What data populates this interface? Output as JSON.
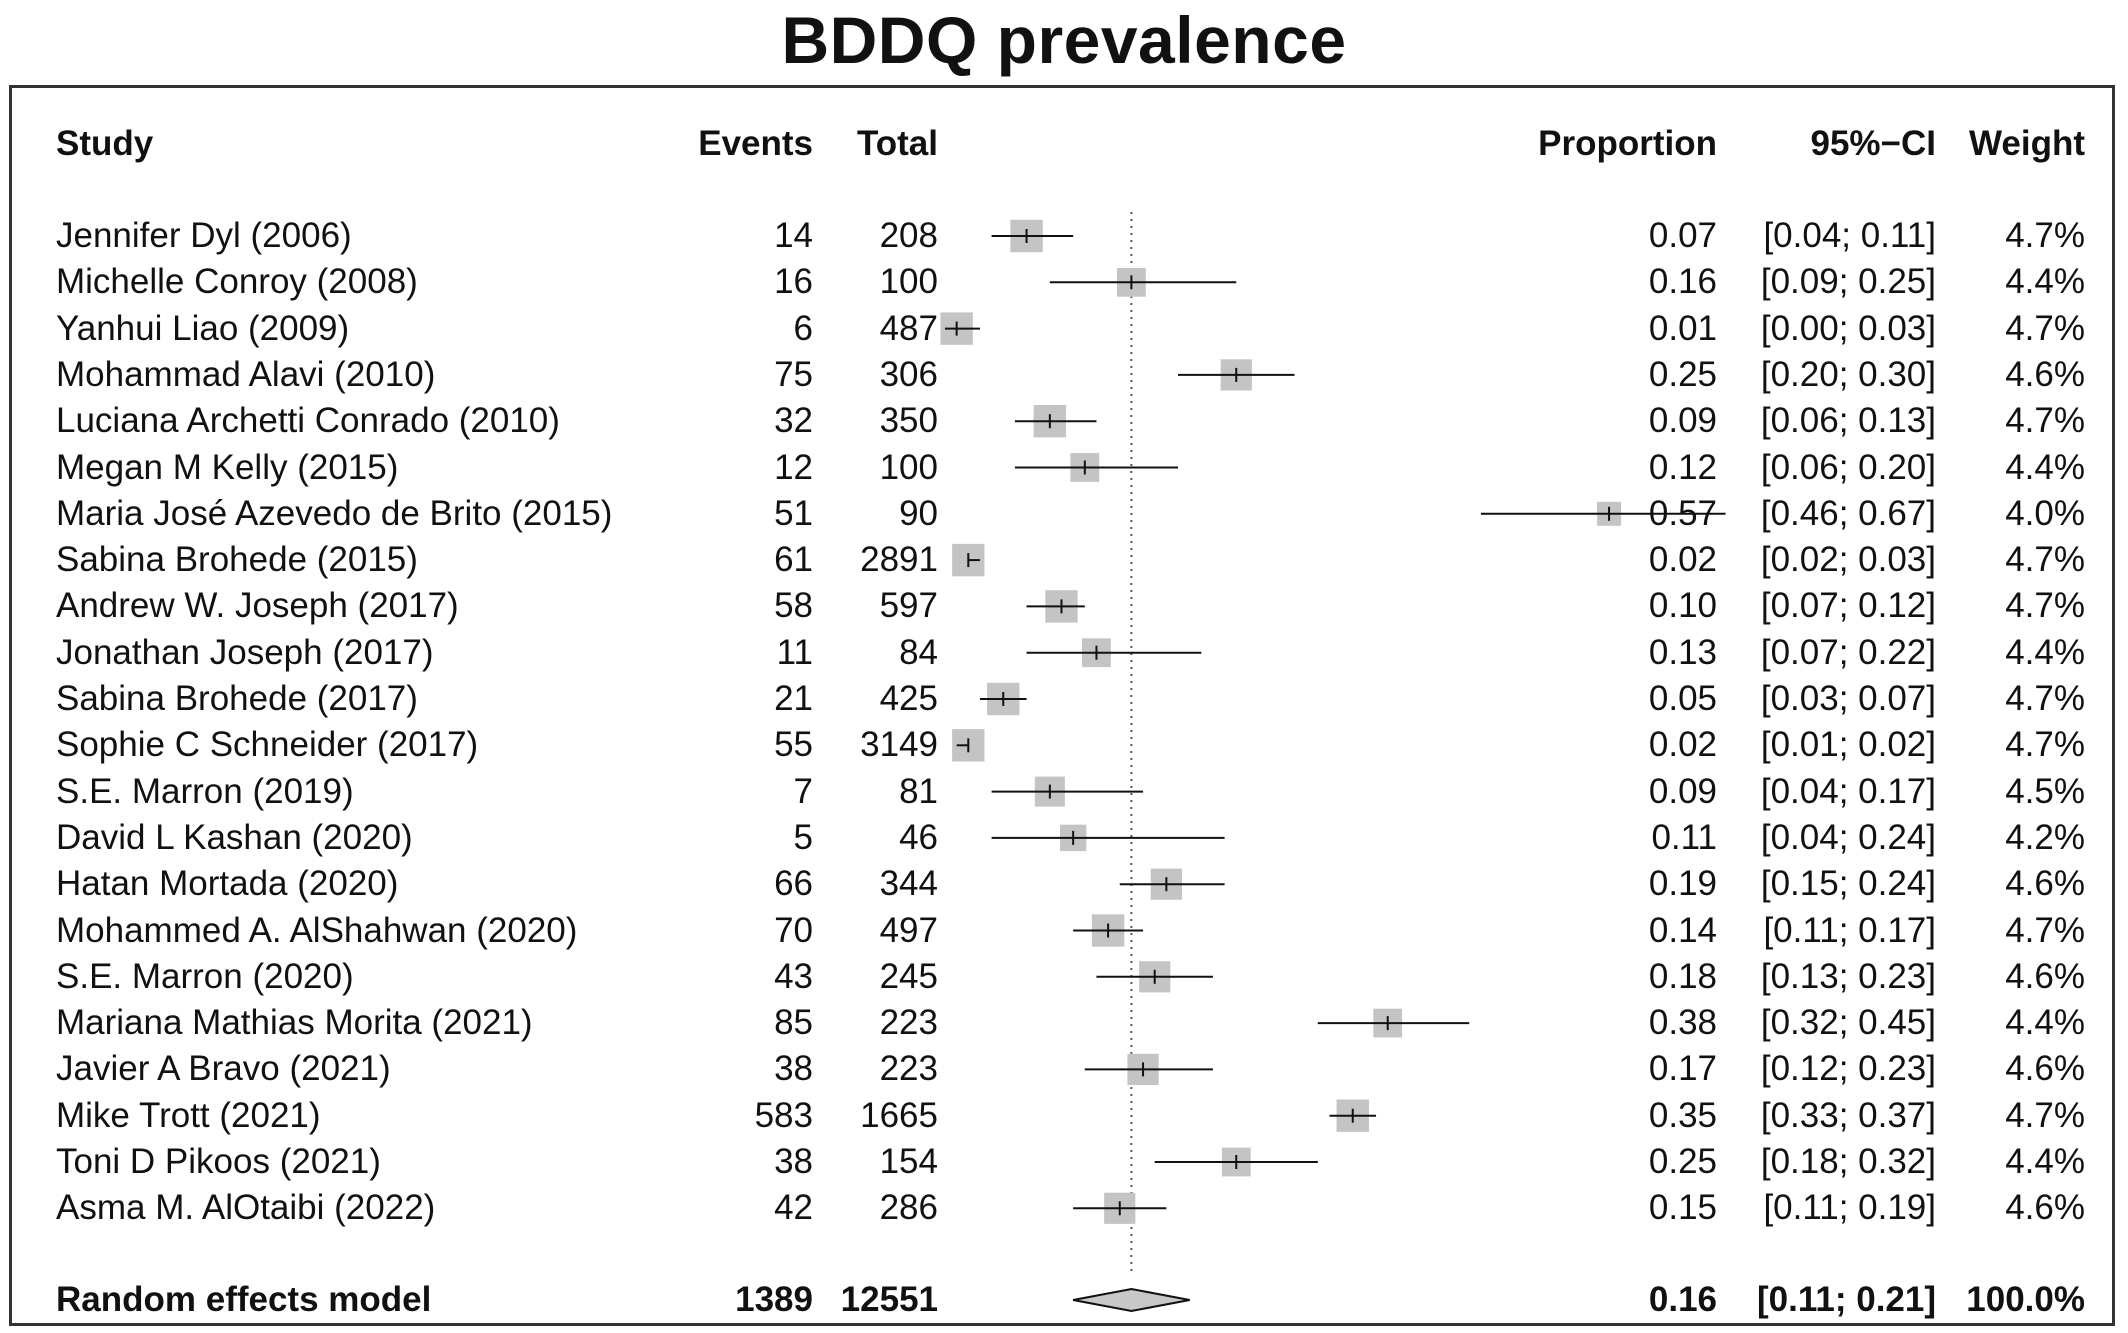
{
  "title": "BDDQ prevalence",
  "headers": {
    "study": "Study",
    "events": "Events",
    "total": "Total",
    "proportion": "Proportion",
    "ci": "95%−CI",
    "weight": "Weight"
  },
  "chart_data": {
    "type": "forest",
    "title": "BDDQ prevalence",
    "xlim": [
      0,
      0.6
    ],
    "reference_line": 0.16,
    "grid": false,
    "studies": [
      {
        "study": "Jennifer Dyl (2006)",
        "events": "14",
        "total": "208",
        "proportion": "0.07",
        "ci": "[0.04; 0.11]",
        "weight": "4.7%",
        "p": 0.07,
        "lo": 0.04,
        "hi": 0.11,
        "w": 4.7
      },
      {
        "study": "Michelle Conroy (2008)",
        "events": "16",
        "total": "100",
        "proportion": "0.16",
        "ci": "[0.09; 0.25]",
        "weight": "4.4%",
        "p": 0.16,
        "lo": 0.09,
        "hi": 0.25,
        "w": 4.4
      },
      {
        "study": "Yanhui Liao (2009)",
        "events": "6",
        "total": "487",
        "proportion": "0.01",
        "ci": "[0.00; 0.03]",
        "weight": "4.7%",
        "p": 0.01,
        "lo": 0.0,
        "hi": 0.03,
        "w": 4.7
      },
      {
        "study": "Mohammad Alavi (2010)",
        "events": "75",
        "total": "306",
        "proportion": "0.25",
        "ci": "[0.20; 0.30]",
        "weight": "4.6%",
        "p": 0.25,
        "lo": 0.2,
        "hi": 0.3,
        "w": 4.6
      },
      {
        "study": "Luciana Archetti Conrado (2010)",
        "events": "32",
        "total": "350",
        "proportion": "0.09",
        "ci": "[0.06; 0.13]",
        "weight": "4.7%",
        "p": 0.09,
        "lo": 0.06,
        "hi": 0.13,
        "w": 4.7
      },
      {
        "study": "Megan M Kelly (2015)",
        "events": "12",
        "total": "100",
        "proportion": "0.12",
        "ci": "[0.06; 0.20]",
        "weight": "4.4%",
        "p": 0.12,
        "lo": 0.06,
        "hi": 0.2,
        "w": 4.4
      },
      {
        "study": "Maria José Azevedo de Brito (2015)",
        "events": "51",
        "total": "90",
        "proportion": "0.57",
        "ci": "[0.46; 0.67]",
        "weight": "4.0%",
        "p": 0.57,
        "lo": 0.46,
        "hi": 0.67,
        "w": 4.0
      },
      {
        "study": "Sabina Brohede (2015)",
        "events": "61",
        "total": "2891",
        "proportion": "0.02",
        "ci": "[0.02; 0.03]",
        "weight": "4.7%",
        "p": 0.02,
        "lo": 0.02,
        "hi": 0.03,
        "w": 4.7
      },
      {
        "study": "Andrew W. Joseph (2017)",
        "events": "58",
        "total": "597",
        "proportion": "0.10",
        "ci": "[0.07; 0.12]",
        "weight": "4.7%",
        "p": 0.1,
        "lo": 0.07,
        "hi": 0.12,
        "w": 4.7
      },
      {
        "study": "Jonathan Joseph (2017)",
        "events": "11",
        "total": "84",
        "proportion": "0.13",
        "ci": "[0.07; 0.22]",
        "weight": "4.4%",
        "p": 0.13,
        "lo": 0.07,
        "hi": 0.22,
        "w": 4.4
      },
      {
        "study": "Sabina Brohede (2017)",
        "events": "21",
        "total": "425",
        "proportion": "0.05",
        "ci": "[0.03; 0.07]",
        "weight": "4.7%",
        "p": 0.05,
        "lo": 0.03,
        "hi": 0.07,
        "w": 4.7
      },
      {
        "study": "Sophie C Schneider (2017)",
        "events": "55",
        "total": "3149",
        "proportion": "0.02",
        "ci": "[0.01; 0.02]",
        "weight": "4.7%",
        "p": 0.02,
        "lo": 0.01,
        "hi": 0.02,
        "w": 4.7
      },
      {
        "study": "S.E. Marron (2019)",
        "events": "7",
        "total": "81",
        "proportion": "0.09",
        "ci": "[0.04; 0.17]",
        "weight": "4.5%",
        "p": 0.09,
        "lo": 0.04,
        "hi": 0.17,
        "w": 4.5
      },
      {
        "study": "David L Kashan (2020)",
        "events": "5",
        "total": "46",
        "proportion": "0.11",
        "ci": "[0.04; 0.24]",
        "weight": "4.2%",
        "p": 0.11,
        "lo": 0.04,
        "hi": 0.24,
        "w": 4.2
      },
      {
        "study": "Hatan Mortada (2020)",
        "events": "66",
        "total": "344",
        "proportion": "0.19",
        "ci": "[0.15; 0.24]",
        "weight": "4.6%",
        "p": 0.19,
        "lo": 0.15,
        "hi": 0.24,
        "w": 4.6
      },
      {
        "study": "Mohammed A. AlShahwan (2020)",
        "events": "70",
        "total": "497",
        "proportion": "0.14",
        "ci": "[0.11; 0.17]",
        "weight": "4.7%",
        "p": 0.14,
        "lo": 0.11,
        "hi": 0.17,
        "w": 4.7
      },
      {
        "study": "S.E. Marron (2020)",
        "events": "43",
        "total": "245",
        "proportion": "0.18",
        "ci": "[0.13; 0.23]",
        "weight": "4.6%",
        "p": 0.18,
        "lo": 0.13,
        "hi": 0.23,
        "w": 4.6
      },
      {
        "study": "Mariana Mathias Morita (2021)",
        "events": "85",
        "total": "223",
        "proportion": "0.38",
        "ci": "[0.32; 0.45]",
        "weight": "4.4%",
        "p": 0.38,
        "lo": 0.32,
        "hi": 0.45,
        "w": 4.4
      },
      {
        "study": "Javier A Bravo (2021)",
        "events": "38",
        "total": "223",
        "proportion": "0.17",
        "ci": "[0.12; 0.23]",
        "weight": "4.6%",
        "p": 0.17,
        "lo": 0.12,
        "hi": 0.23,
        "w": 4.6
      },
      {
        "study": "Mike Trott (2021)",
        "events": "583",
        "total": "1665",
        "proportion": "0.35",
        "ci": "[0.33; 0.37]",
        "weight": "4.7%",
        "p": 0.35,
        "lo": 0.33,
        "hi": 0.37,
        "w": 4.7
      },
      {
        "study": "Toni D Pikoos (2021)",
        "events": "38",
        "total": "154",
        "proportion": "0.25",
        "ci": "[0.18; 0.32]",
        "weight": "4.4%",
        "p": 0.25,
        "lo": 0.18,
        "hi": 0.32,
        "w": 4.4
      },
      {
        "study": "Asma M. AlOtaibi (2022)",
        "events": "42",
        "total": "286",
        "proportion": "0.15",
        "ci": "[0.11; 0.19]",
        "weight": "4.6%",
        "p": 0.15,
        "lo": 0.11,
        "hi": 0.19,
        "w": 4.6
      }
    ],
    "summary": {
      "study": "Random effects model",
      "events": "1389",
      "total": "12551",
      "proportion": "0.16",
      "ci": "[0.11; 0.21]",
      "weight": "100.0%",
      "p": 0.16,
      "lo": 0.11,
      "hi": 0.21
    },
    "colors": {
      "box": "#c4c4c4",
      "line": "#111111",
      "diamond": "#c8c8c8",
      "frame": "#333333"
    }
  }
}
